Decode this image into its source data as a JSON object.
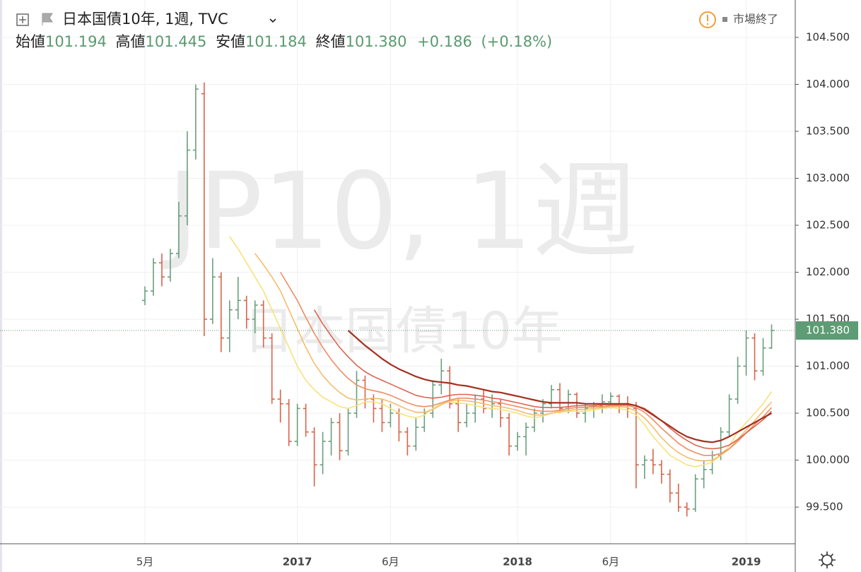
{
  "header": {
    "title": "日本国債10年, 1週, TVC",
    "legend": [
      {
        "name": "始値",
        "text": "101.194"
      },
      {
        "name": "高値",
        "text": "101.445"
      },
      {
        "name": "安値",
        "text": "101.184"
      },
      {
        "name": "終値",
        "text": "101.380"
      }
    ],
    "change": "+0.186",
    "change_pct": "(+0.18%)",
    "market_status": "市場終了"
  },
  "watermark": {
    "symbol": "JP10, 1週",
    "name": "日本国債10年"
  },
  "chart_data": {
    "type": "ohlc",
    "up_color": "#6a9f7e",
    "down_color": "#d9634a",
    "grid": true,
    "ylim": [
      99.11,
      104.898
    ],
    "yticks": [
      {
        "value": 99.5,
        "label": "99.500"
      },
      {
        "value": 100,
        "label": "100.000"
      },
      {
        "value": 100.5,
        "label": "100.500"
      },
      {
        "value": 101,
        "label": "101.000"
      },
      {
        "value": 101.5,
        "label": "101.500"
      },
      {
        "value": 102,
        "label": "102.000"
      },
      {
        "value": 102.5,
        "label": "102.500"
      },
      {
        "value": 103,
        "label": "103.000"
      },
      {
        "value": 103.5,
        "label": "103.500"
      },
      {
        "value": 104,
        "label": "104.000"
      },
      {
        "value": 104.5,
        "label": "104.500"
      }
    ],
    "last_price": {
      "value": 101.38,
      "label": "101.380"
    },
    "categories": [
      "5月",
      null,
      null,
      null,
      null,
      null,
      null,
      null,
      null,
      null,
      null,
      null,
      null,
      null,
      null,
      null,
      null,
      null,
      "2017",
      null,
      null,
      null,
      null,
      null,
      null,
      null,
      null,
      null,
      null,
      "6月",
      null,
      null,
      null,
      null,
      null,
      null,
      null,
      null,
      null,
      null,
      null,
      null,
      null,
      null,
      "2018",
      null,
      null,
      null,
      null,
      null,
      null,
      null,
      null,
      null,
      null,
      "6月",
      null,
      null,
      null,
      null,
      null,
      null,
      null,
      null,
      null,
      null,
      null,
      null,
      null,
      null,
      null,
      "2019",
      null,
      null,
      null
    ],
    "open": [
      101.7,
      101.8,
      102.1,
      101.95,
      102.2,
      102.6,
      103.3,
      103.9,
      101.5,
      101.95,
      101.3,
      101.6,
      101.7,
      101.5,
      101.65,
      101.3,
      100.65,
      100.6,
      100.2,
      100.55,
      100.3,
      99.95,
      100.2,
      100.4,
      100.1,
      100.5,
      100.85,
      100.65,
      100.55,
      100.4,
      100.5,
      100.3,
      100.15,
      100.35,
      100.5,
      100.8,
      100.95,
      100.6,
      100.4,
      100.5,
      100.65,
      100.55,
      100.6,
      100.45,
      100.15,
      100.25,
      100.35,
      100.5,
      100.6,
      100.75,
      100.55,
      100.7,
      100.5,
      100.55,
      100.58,
      100.62,
      100.68,
      100.6,
      100.55,
      99.95,
      100.0,
      99.95,
      99.85,
      99.65,
      99.5,
      99.48,
      99.8,
      99.9,
      100.05,
      100.3,
      100.65,
      101.0,
      101.3,
      100.95,
      101.194
    ],
    "high": [
      101.85,
      102.15,
      102.2,
      102.25,
      102.75,
      103.5,
      104.0,
      104.02,
      102.15,
      102.0,
      101.7,
      101.95,
      101.75,
      101.7,
      101.7,
      101.35,
      100.75,
      100.65,
      100.6,
      100.6,
      100.35,
      100.3,
      100.45,
      100.5,
      100.55,
      100.95,
      100.9,
      100.7,
      100.65,
      100.6,
      100.55,
      100.35,
      100.45,
      100.55,
      100.85,
      101.08,
      101.0,
      100.65,
      100.6,
      100.7,
      100.75,
      100.7,
      100.65,
      100.5,
      100.3,
      100.4,
      100.55,
      100.65,
      100.8,
      100.82,
      100.75,
      100.72,
      100.6,
      100.62,
      100.7,
      100.72,
      100.7,
      100.68,
      100.62,
      100.05,
      100.12,
      100.0,
      99.9,
      99.75,
      99.55,
      99.85,
      100.0,
      100.1,
      100.35,
      100.7,
      101.1,
      101.38,
      101.35,
      101.3,
      101.445
    ],
    "low": [
      101.65,
      101.75,
      101.85,
      101.9,
      102.15,
      102.5,
      103.2,
      101.32,
      101.45,
      101.15,
      101.15,
      101.5,
      101.4,
      101.35,
      101.2,
      100.6,
      100.4,
      100.15,
      100.15,
      100.25,
      99.72,
      99.85,
      100.05,
      100.0,
      100.05,
      100.45,
      100.55,
      100.4,
      100.3,
      100.35,
      100.2,
      100.05,
      100.1,
      100.3,
      100.45,
      100.7,
      100.55,
      100.3,
      100.35,
      100.4,
      100.5,
      100.45,
      100.35,
      100.05,
      100.1,
      100.05,
      100.3,
      100.4,
      100.55,
      100.5,
      100.5,
      100.45,
      100.4,
      100.45,
      100.5,
      100.55,
      100.5,
      100.45,
      99.7,
      99.8,
      99.85,
      99.75,
      99.55,
      99.45,
      99.4,
      99.45,
      99.7,
      99.85,
      100.0,
      100.25,
      100.6,
      100.9,
      100.85,
      100.9,
      101.184
    ],
    "close": [
      101.8,
      102.1,
      101.95,
      102.2,
      102.6,
      103.3,
      103.95,
      101.5,
      101.95,
      101.3,
      101.6,
      101.7,
      101.5,
      101.65,
      101.3,
      100.65,
      100.6,
      100.2,
      100.55,
      100.3,
      99.95,
      100.2,
      100.4,
      100.1,
      100.5,
      100.85,
      100.65,
      100.55,
      100.4,
      100.5,
      100.3,
      100.15,
      100.35,
      100.5,
      100.8,
      100.95,
      100.6,
      100.4,
      100.5,
      100.65,
      100.55,
      100.6,
      100.45,
      100.15,
      100.25,
      100.35,
      100.5,
      100.6,
      100.75,
      100.55,
      100.7,
      100.5,
      100.55,
      100.58,
      100.62,
      100.68,
      100.6,
      100.55,
      99.95,
      100.0,
      99.95,
      99.85,
      99.65,
      99.5,
      99.48,
      99.8,
      99.9,
      100.05,
      100.3,
      100.65,
      101.0,
      101.3,
      100.95,
      101.194,
      101.38
    ],
    "series": [
      {
        "color": "#f7e27a",
        "values": [
          null,
          null,
          null,
          null,
          null,
          null,
          null,
          null,
          null,
          null,
          102.38,
          102.25,
          102.1,
          101.95,
          101.8,
          101.6,
          101.4,
          101.2,
          101.0,
          100.85,
          100.75,
          100.67,
          100.62,
          100.57,
          100.55,
          100.58,
          100.62,
          100.62,
          100.6,
          100.55,
          100.5,
          100.47,
          100.45,
          100.48,
          100.55,
          100.6,
          100.62,
          100.61,
          100.6,
          100.58,
          100.56,
          100.55,
          100.54,
          100.52,
          100.5,
          100.47,
          100.45,
          100.47,
          100.5,
          100.51,
          100.52,
          100.52,
          100.52,
          100.53,
          100.55,
          100.56,
          100.55,
          100.53,
          100.48,
          100.38,
          100.25,
          100.15,
          100.05,
          100.0,
          99.95,
          99.93,
          99.95,
          99.98,
          100.05,
          100.15,
          100.3,
          100.4,
          100.5,
          100.6,
          100.73
        ]
      },
      {
        "color": "#f4bd6c",
        "values": [
          null,
          null,
          null,
          null,
          null,
          null,
          null,
          null,
          null,
          null,
          null,
          null,
          null,
          102.2,
          102.08,
          101.95,
          101.8,
          101.6,
          101.4,
          101.2,
          101.03,
          100.9,
          100.8,
          100.72,
          100.66,
          100.64,
          100.65,
          100.66,
          100.65,
          100.62,
          100.58,
          100.54,
          100.51,
          100.51,
          100.54,
          100.59,
          100.63,
          100.64,
          100.63,
          100.62,
          100.6,
          100.58,
          100.57,
          100.55,
          100.53,
          100.5,
          100.48,
          100.48,
          100.5,
          100.52,
          100.53,
          100.54,
          100.54,
          100.55,
          100.56,
          100.57,
          100.57,
          100.56,
          100.52,
          100.45,
          100.35,
          100.24,
          100.15,
          100.08,
          100.03,
          100.0,
          99.99,
          100.0,
          100.05,
          100.12,
          100.22,
          100.32,
          100.42,
          100.52,
          100.62
        ]
      },
      {
        "color": "#ee8d62",
        "values": [
          null,
          null,
          null,
          null,
          null,
          null,
          null,
          null,
          null,
          null,
          null,
          null,
          null,
          null,
          null,
          null,
          102.0,
          101.85,
          101.7,
          101.52,
          101.35,
          101.2,
          101.07,
          100.96,
          100.87,
          100.8,
          100.76,
          100.74,
          100.72,
          100.69,
          100.65,
          100.61,
          100.58,
          100.57,
          100.58,
          100.61,
          100.64,
          100.66,
          100.66,
          100.65,
          100.64,
          100.62,
          100.61,
          100.59,
          100.57,
          100.55,
          100.53,
          100.52,
          100.52,
          100.53,
          100.55,
          100.56,
          100.56,
          100.57,
          100.57,
          100.58,
          100.58,
          100.58,
          100.56,
          100.51,
          100.43,
          100.34,
          100.26,
          100.18,
          100.12,
          100.08,
          100.05,
          100.05,
          100.07,
          100.12,
          100.2,
          100.29,
          100.38,
          100.46,
          100.56
        ]
      },
      {
        "color": "#de6350",
        "values": [
          null,
          null,
          null,
          null,
          null,
          null,
          null,
          null,
          null,
          null,
          null,
          null,
          null,
          null,
          null,
          null,
          null,
          null,
          null,
          null,
          101.6,
          101.45,
          101.32,
          101.2,
          101.1,
          101.01,
          100.94,
          100.89,
          100.85,
          100.81,
          100.77,
          100.73,
          100.69,
          100.67,
          100.66,
          100.67,
          100.69,
          100.7,
          100.7,
          100.69,
          100.68,
          100.66,
          100.65,
          100.63,
          100.61,
          100.59,
          100.57,
          100.56,
          100.56,
          100.56,
          100.57,
          100.58,
          100.58,
          100.58,
          100.59,
          100.59,
          100.59,
          100.59,
          100.58,
          100.55,
          100.49,
          100.42,
          100.34,
          100.27,
          100.21,
          100.16,
          100.13,
          100.12,
          100.13,
          100.16,
          100.22,
          100.29,
          100.36,
          100.43,
          100.52
        ]
      },
      {
        "color": "#a3301e",
        "values": [
          null,
          null,
          null,
          null,
          null,
          null,
          null,
          null,
          null,
          null,
          null,
          null,
          null,
          null,
          null,
          null,
          null,
          null,
          null,
          null,
          null,
          null,
          null,
          null,
          101.38,
          101.3,
          101.22,
          101.15,
          101.08,
          101.02,
          100.97,
          100.93,
          100.89,
          100.86,
          100.84,
          100.83,
          100.82,
          100.8,
          100.79,
          100.77,
          100.75,
          100.73,
          100.72,
          100.7,
          100.68,
          100.66,
          100.64,
          100.62,
          100.61,
          100.61,
          100.61,
          100.61,
          100.6,
          100.6,
          100.6,
          100.6,
          100.6,
          100.6,
          100.58,
          100.54,
          100.48,
          100.42,
          100.36,
          100.3,
          100.25,
          100.22,
          100.2,
          100.19,
          100.21,
          100.25,
          100.3,
          100.35,
          100.4,
          100.45,
          100.5
        ]
      }
    ]
  }
}
